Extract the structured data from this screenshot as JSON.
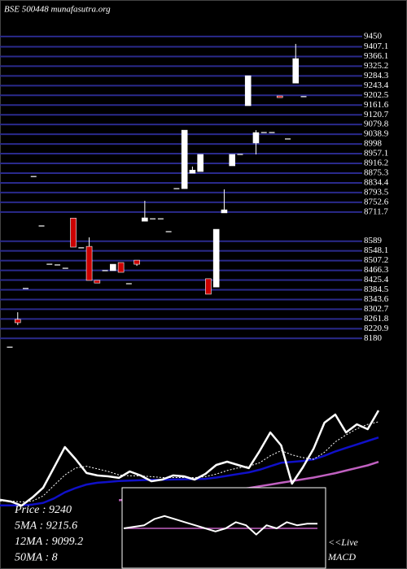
{
  "chart_data": [
    {
      "type": "candlestick",
      "title": "BSE 500448 munafasutra.org",
      "open": [
        8143,
        8260,
        8390,
        8861,
        8653,
        8492,
        8489,
        8475,
        8686,
        8561,
        8567,
        8424,
        8465,
        8465,
        8499,
        8410,
        8509,
        8673,
        8683,
        8683,
        8629,
        8810,
        8810,
        8875,
        8882,
        8431,
        8396,
        8708,
        8906,
        8954,
        9159,
        9002,
        9046,
        9046,
        9200,
        9019,
        9254,
        9197
      ],
      "high": [
        8143,
        8290,
        8390,
        8861,
        8653,
        8492,
        8489,
        8475,
        8686,
        8561,
        8605,
        8424,
        8465,
        8492,
        8499,
        8410,
        8509,
        8759,
        8683,
        8683,
        8629,
        8810,
        9056,
        8903,
        8954,
        8431,
        8639,
        8807,
        8954,
        8954,
        9285,
        9056,
        9046,
        9046,
        9200,
        9019,
        9419,
        9197
      ],
      "low": [
        8143,
        8236,
        8390,
        8861,
        8653,
        8492,
        8489,
        8475,
        8564,
        8561,
        8424,
        8413,
        8465,
        8465,
        8458,
        8410,
        8485,
        8673,
        8683,
        8683,
        8629,
        8810,
        8810,
        8875,
        8882,
        8366,
        8396,
        8708,
        8906,
        8954,
        9159,
        8954,
        9046,
        9046,
        9193,
        9019,
        9254,
        9197
      ],
      "close": [
        8143,
        8246,
        8390,
        8861,
        8653,
        8492,
        8489,
        8475,
        8564,
        8561,
        8424,
        8413,
        8465,
        8492,
        8458,
        8410,
        8492,
        8687,
        8683,
        8683,
        8629,
        8810,
        9056,
        8888,
        8954,
        8366,
        8639,
        8721,
        8954,
        8954,
        9285,
        9046,
        9046,
        9046,
        9193,
        9019,
        9357,
        9197
      ],
      "up_color": "#ffffff",
      "down_color": "#cc0000",
      "ylim": [
        8140,
        9460
      ],
      "yticks": [
        9450,
        9407.1,
        9366.1,
        9325.2,
        9284.3,
        9243.4,
        9202.5,
        9161.6,
        9120.7,
        9079.8,
        9038.9,
        8998,
        8957.1,
        8916.2,
        8875.3,
        8834.4,
        8793.5,
        8752.6,
        8711.7,
        8589,
        8548.1,
        8507.2,
        8466.3,
        8425.4,
        8384.5,
        8343.6,
        8302.7,
        8261.8,
        8220.9,
        8180
      ],
      "grid": true,
      "grid_color": "#2a2a8c"
    },
    {
      "type": "line",
      "ylim": [
        8100,
        9500
      ],
      "series": [
        {
          "color": "#c060c0",
          "width": 2.5,
          "style": "solid",
          "values": [
            null,
            null,
            null,
            null,
            null,
            null,
            null,
            null,
            null,
            null,
            null,
            8330,
            8340,
            8350,
            8360,
            8370,
            8380,
            8390,
            8400,
            8410,
            8425,
            8440,
            8455,
            8470,
            8490,
            8510,
            8530,
            8550,
            8570,
            8590,
            8615,
            8640,
            8670,
            8700,
            8730,
            8770
          ]
        },
        {
          "color": "#1010c8",
          "width": 2.5,
          "style": "solid",
          "values": [
            8270,
            8270,
            8270,
            8280,
            8300,
            8350,
            8420,
            8470,
            8510,
            8530,
            8540,
            8550,
            8555,
            8560,
            8565,
            8565,
            8568,
            8570,
            8572,
            8575,
            8590,
            8610,
            8630,
            8650,
            8680,
            8720,
            8760,
            8770,
            8780,
            8800,
            8840,
            8890,
            8930,
            8970,
            9010,
            9050
          ]
        },
        {
          "color": "#ffffff",
          "width": 1,
          "style": "dotted",
          "values": [
            8320,
            8320,
            8310,
            8320,
            8380,
            8500,
            8620,
            8700,
            8720,
            8690,
            8660,
            8620,
            8610,
            8610,
            8600,
            8590,
            8590,
            8590,
            8590,
            8600,
            8630,
            8670,
            8700,
            8720,
            8760,
            8840,
            8900,
            8850,
            8820,
            8800,
            8880,
            9000,
            9080,
            9150,
            9200,
            9230
          ]
        },
        {
          "color": "#ffffff",
          "width": 2.5,
          "style": "solid",
          "values": [
            8334,
            8315,
            8268,
            8362,
            8474,
            8707,
            8940,
            8800,
            8642,
            8614,
            8604,
            8586,
            8660,
            8614,
            8548,
            8567,
            8614,
            8604,
            8567,
            8632,
            8735,
            8772,
            8735,
            8698,
            8894,
            9108,
            8959,
            8520,
            8707,
            8922,
            9220,
            9313,
            9108,
            9201,
            9145,
            9360
          ]
        }
      ],
      "readouts": [
        "Price : 9240",
        "5MA : 9215.6",
        "12MA : 9099.2",
        "50MA : 8"
      ]
    },
    {
      "type": "macd",
      "ylim": [
        -1,
        1
      ],
      "title": "MACD",
      "note": "<<Live",
      "series": [
        {
          "color": "#c060c0",
          "width": 1.5,
          "style": "solid",
          "values": [
            0,
            0,
            0,
            0,
            0,
            0,
            0,
            0,
            0,
            0,
            0,
            0,
            0,
            0,
            0,
            0,
            0,
            0,
            0,
            0
          ]
        },
        {
          "color": "#ffffff",
          "width": 2,
          "style": "solid",
          "values": [
            0,
            0.05,
            0.1,
            0.3,
            0.4,
            0.3,
            0.2,
            0.1,
            0,
            -0.1,
            0,
            0.2,
            0.1,
            -0.2,
            0.1,
            0,
            0.2,
            0.1,
            0.15,
            0.15
          ]
        }
      ]
    }
  ]
}
